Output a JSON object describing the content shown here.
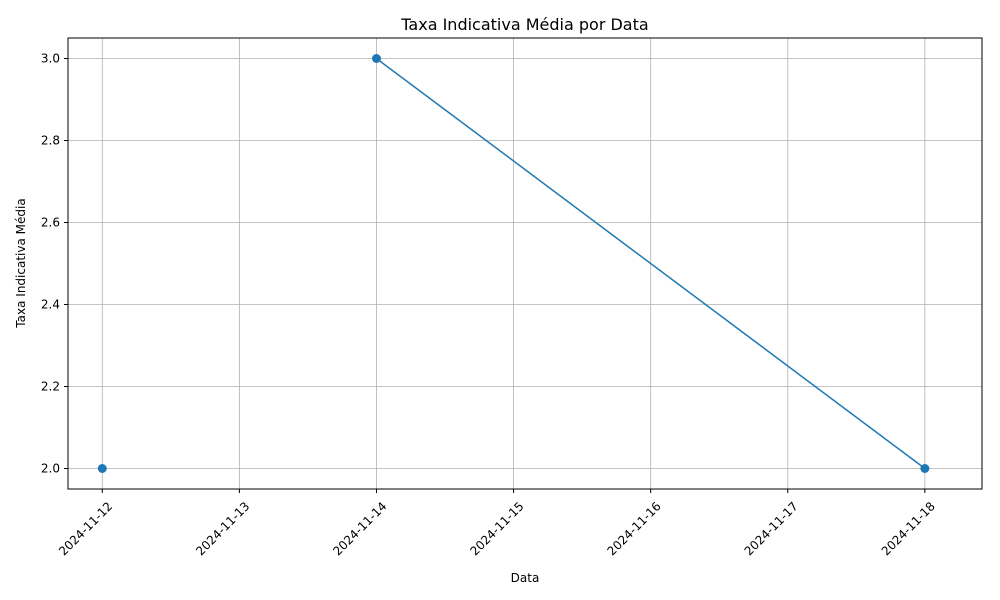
{
  "chart_data": {
    "type": "line",
    "title": "Taxa Indicativa Média por Data",
    "xlabel": "Data",
    "ylabel": "Taxa Indicativa Média",
    "x_ticks": [
      "2024-11-12",
      "2024-11-13",
      "2024-11-14",
      "2024-11-15",
      "2024-11-16",
      "2024-11-17",
      "2024-11-18"
    ],
    "y_ticks": [
      "2.0",
      "2.2",
      "2.4",
      "2.6",
      "2.8",
      "3.0"
    ],
    "xlim": [
      "2024-11-11T18:00",
      "2024-11-18T10:00"
    ],
    "ylim": [
      1.95,
      3.05
    ],
    "grid": true,
    "series": [
      {
        "color": "#1f77b4",
        "segments": [
          [
            {
              "x": "2024-11-12",
              "y": 2.0
            }
          ],
          [
            {
              "x": "2024-11-14",
              "y": 3.0
            },
            {
              "x": "2024-11-18",
              "y": 2.0
            }
          ]
        ]
      }
    ]
  }
}
